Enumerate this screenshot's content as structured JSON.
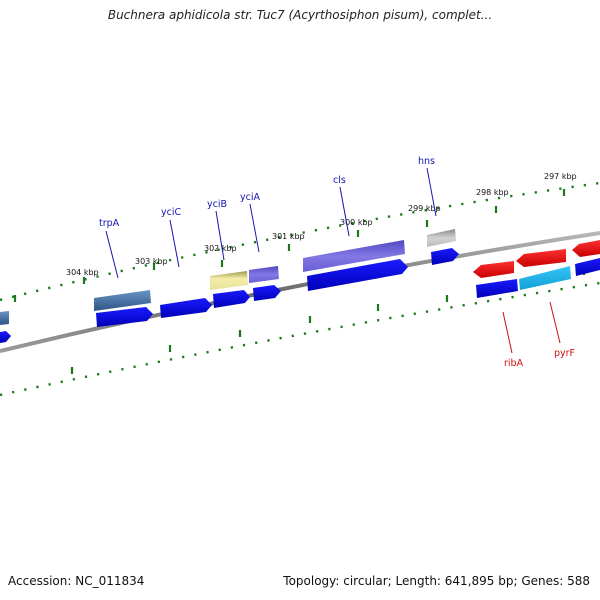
{
  "header": {
    "title": "Buchnera aphidicola str. Tuc7 (Acyrthosiphon pisum), complet..."
  },
  "footer": {
    "accession": "Accession: NC_011834",
    "stats": "Topology: circular; Length: 641,895 bp; Genes: 588"
  },
  "colors": {
    "backbone": "#7a7a7a",
    "tick": "#1a7a1a",
    "label_blue": "#1515b0",
    "label_red": "#cc1111",
    "cds_blue": "#1111ee",
    "cds_red": "#ee1111",
    "cds_cyan": "#22bbee"
  },
  "map": {
    "scale_labels": [
      {
        "id": "kbp-304",
        "text": "304 kbp"
      },
      {
        "id": "kbp-303",
        "text": "303 kbp"
      },
      {
        "id": "kbp-302",
        "text": "302 kbp"
      },
      {
        "id": "kbp-301",
        "text": "301 kbp"
      },
      {
        "id": "kbp-300",
        "text": "300 kbp"
      },
      {
        "id": "kbp-299",
        "text": "299 kbp"
      },
      {
        "id": "kbp-298",
        "text": "298 kbp"
      },
      {
        "id": "kbp-297",
        "text": "297 kbp"
      }
    ],
    "gene_labels": [
      {
        "id": "trpA",
        "text": "trpA",
        "strand": "forward"
      },
      {
        "id": "yciC",
        "text": "yciC",
        "strand": "forward"
      },
      {
        "id": "yciB",
        "text": "yciB",
        "strand": "forward"
      },
      {
        "id": "yciA",
        "text": "yciA",
        "strand": "forward"
      },
      {
        "id": "cls",
        "text": "cls",
        "strand": "forward"
      },
      {
        "id": "hns",
        "text": "hns",
        "strand": "forward"
      },
      {
        "id": "ribA",
        "text": "ribA",
        "strand": "reverse"
      },
      {
        "id": "pyrF",
        "text": "pyrF",
        "strand": "reverse"
      }
    ]
  }
}
